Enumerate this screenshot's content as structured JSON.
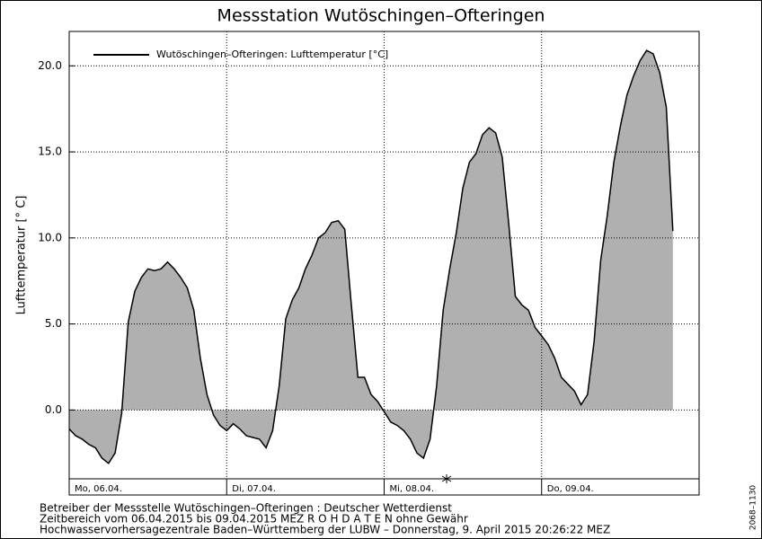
{
  "chart_data": {
    "type": "area",
    "title": "Messstation Wutöschingen–Ofteringen",
    "y_label": "Lufttemperatur [° C]",
    "x_tick_labels": [
      "Mo, 06.04.",
      "Di, 07.04.",
      "Mi, 08.04.",
      "Do, 09.04."
    ],
    "series": [
      {
        "name": "Wutöschingen–Ofteringen: Lufttemperatur [°C]",
        "color": "#000000",
        "fill": "#b0b0b0",
        "values": [
          -1.1,
          -1.5,
          -1.7,
          -2.0,
          -2.2,
          -2.8,
          -3.1,
          -2.5,
          -0.2,
          5.1,
          6.9,
          7.7,
          8.2,
          8.1,
          8.2,
          8.6,
          8.2,
          7.7,
          7.1,
          5.8,
          3.0,
          0.9,
          -0.3,
          -0.9,
          -1.2,
          -0.8,
          -1.1,
          -1.5,
          -1.6,
          -1.7,
          -2.2,
          -1.2,
          1.4,
          5.3,
          6.4,
          7.1,
          8.2,
          9.0,
          10.0,
          10.3,
          10.9,
          11.0,
          10.5,
          6.1,
          1.9,
          1.9,
          0.9,
          0.5,
          -0.1,
          -0.7,
          -0.9,
          -1.2,
          -1.7,
          -2.5,
          -2.8,
          -1.7,
          1.4,
          5.8,
          8.2,
          10.3,
          12.9,
          14.4,
          14.9,
          16.0,
          16.4,
          16.1,
          14.7,
          10.8,
          6.6,
          6.1,
          5.8,
          4.8,
          4.3,
          3.8,
          3.0,
          1.9,
          1.5,
          1.1,
          0.3,
          0.9,
          4.0,
          8.7,
          11.3,
          14.4,
          16.5,
          18.3,
          19.4,
          20.3,
          20.9,
          20.7,
          19.6,
          17.6,
          10.4
        ]
      }
    ],
    "ylim": [
      -4,
      22
    ],
    "yticks": [
      {
        "value": 0,
        "label": "0.0"
      },
      {
        "value": 5,
        "label": "5.0"
      },
      {
        "value": 10,
        "label": "10.0"
      },
      {
        "value": 15,
        "label": "15.0"
      },
      {
        "value": 20,
        "label": "20.0"
      }
    ],
    "grid": true,
    "footer": [
      "Betreiber der Messstelle Wutöschingen–Ofteringen : Deutscher Wetterdienst",
      "Zeitbereich vom 06.04.2015 bis 09.04.2015    MEZ    R O H D A T E N ohne Gewähr",
      "Hochwasservorhersagezentrale Baden–Württemberg der LUBW – Donnerstag, 9. April 2015 20:26:22 MEZ"
    ],
    "side_label": "2068–1130"
  }
}
